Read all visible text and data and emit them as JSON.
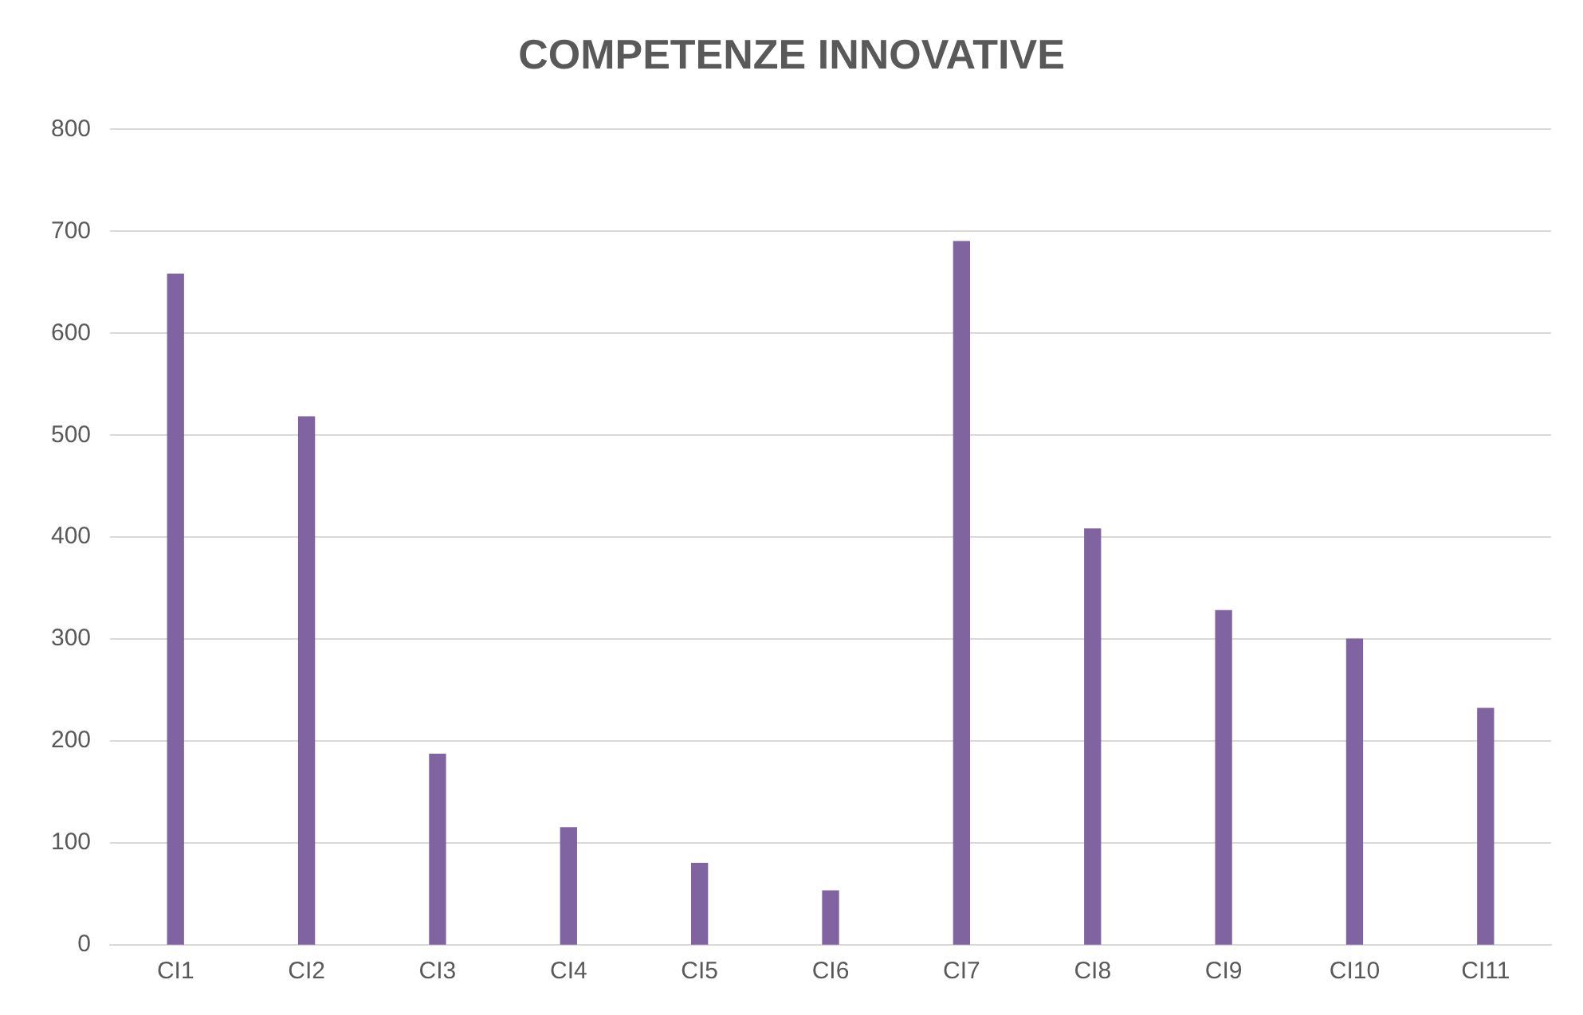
{
  "chart_data": {
    "type": "bar",
    "title": "COMPETENZE INNOVATIVE",
    "categories": [
      "CI1",
      "CI2",
      "CI3",
      "CI4",
      "CI5",
      "CI6",
      "CI7",
      "CI8",
      "CI9",
      "CI10",
      "CI11"
    ],
    "values": [
      658,
      518,
      187,
      115,
      80,
      53,
      690,
      408,
      328,
      300,
      232
    ],
    "color": "#8064a2",
    "ylim": [
      0,
      800
    ],
    "yticks": [
      0,
      100,
      200,
      300,
      400,
      500,
      600,
      700,
      800
    ],
    "grid": "y"
  }
}
